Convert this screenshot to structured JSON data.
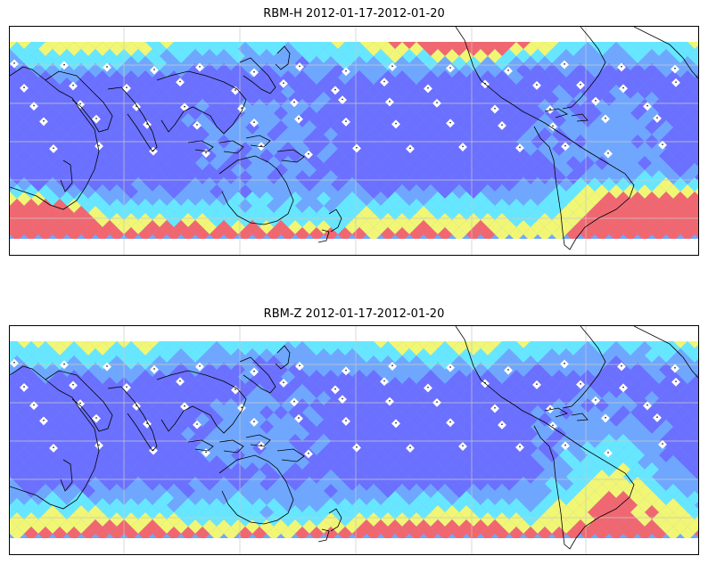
{
  "figure": {
    "panels": [
      {
        "title": "RBM-H 2012-01-17-2012-01-20",
        "hot_south_pacific": true
      },
      {
        "title": "RBM-Z 2012-01-17-2012-01-20",
        "hot_south_pacific": false
      }
    ]
  },
  "colors": {
    "low": "#6a6aff",
    "mid_low": "#6fa7ff",
    "mid": "#66eeff",
    "high": "#ffff66",
    "very_high": "#ff6060",
    "coast": "#000000",
    "grid": "#c8c8c8"
  }
}
